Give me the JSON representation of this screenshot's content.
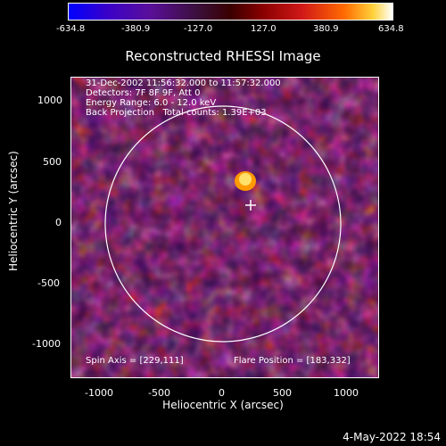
{
  "colorbar": {
    "ticks": [
      "-634.8",
      "-380.9",
      "-127.0",
      "127.0",
      "380.9",
      "634.8"
    ]
  },
  "title": "Reconstructed RHESSI Image",
  "info": {
    "line1": "31-Dec-2002 11:56:32.000 to 11:57:32.000",
    "line2": "Detectors: 7F 8F 9F, Att 0",
    "line3": "Energy Range: 6.0 - 12.0 keV",
    "line4": "Back Projection   Total counts: 1.39E+03"
  },
  "spin_axis": "Spin Axis = [229,111]",
  "flare_position": "Flare Position = [183,332]",
  "axes": {
    "x_title": "Heliocentric X (arcsec)",
    "y_title": "Heliocentric Y (arcsec)",
    "x_ticks": [
      "-1000",
      "-500",
      "0",
      "500",
      "1000"
    ],
    "y_ticks": [
      "1000",
      "500",
      "0",
      "-500",
      "-1000"
    ]
  },
  "footer_date": "4-May-2022 18:54"
}
